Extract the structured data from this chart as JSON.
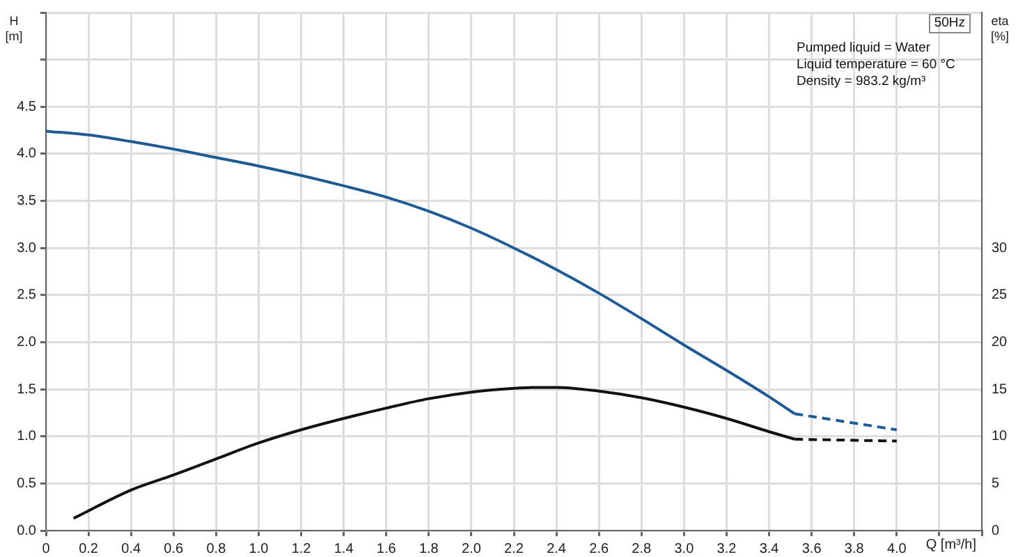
{
  "chart_data": {
    "type": "line",
    "xlabel": "Q [m³/h]",
    "ylabel": "H [m]",
    "y2label": "eta [%]",
    "annotations": [
      "50Hz",
      "Pumped liquid = Water",
      "Liquid temperature = 60 °C",
      "Density = 983.2 kg/m³"
    ],
    "xlim": [
      0,
      4.4
    ],
    "xticks": [
      0,
      0.2,
      0.4,
      0.6,
      0.8,
      {
        "value": 1,
        "label": "1.0"
      },
      1.2,
      1.4,
      1.6,
      1.8,
      {
        "value": 2,
        "label": "2.0"
      },
      2.2,
      2.4,
      2.6,
      2.8,
      {
        "value": 3,
        "label": "3.0"
      },
      3.2,
      3.4,
      3.6,
      3.8,
      {
        "value": 4,
        "label": "4.0"
      },
      {
        "value": 4.2,
        "label": null
      },
      {
        "value": 4.4,
        "label": null
      }
    ],
    "ylim": [
      0,
      5.5
    ],
    "yticks": [
      {
        "value": 0,
        "label": "0.0"
      },
      0.5,
      {
        "value": 1,
        "label": "1.0"
      },
      1.5,
      {
        "value": 2,
        "label": "2.0"
      },
      2.5,
      {
        "value": 3,
        "label": "3.0"
      },
      3.5,
      {
        "value": 4,
        "label": "4.0"
      },
      4.5,
      {
        "value": 5,
        "label": null
      },
      {
        "value": 5.5,
        "label": null
      }
    ],
    "y2lim": [
      0,
      55
    ],
    "y2ticks": [
      0,
      5,
      10,
      15,
      20,
      25,
      30
    ],
    "grid": true,
    "legend": false,
    "marker": "none",
    "series": [
      {
        "color": "#1f5a96",
        "line_style": "solid",
        "x": [
          0,
          0.2,
          0.4,
          0.6,
          0.8,
          1.0,
          1.2,
          1.4,
          1.6,
          1.8,
          2.0,
          2.2,
          2.4,
          2.6,
          2.8,
          3.0,
          3.2,
          3.4,
          3.52
        ],
        "values": [
          4.24,
          4.2,
          4.13,
          4.05,
          3.96,
          3.87,
          3.77,
          3.66,
          3.54,
          3.39,
          3.21,
          3.0,
          2.77,
          2.52,
          2.25,
          1.97,
          1.7,
          1.42,
          1.24
        ]
      },
      {
        "color": "#1f5a96",
        "line_style": "dashed",
        "x": [
          3.52,
          4.0
        ],
        "values": [
          1.24,
          1.07
        ]
      },
      {
        "color": "#111111",
        "line_style": "solid",
        "axis": "y2",
        "x": [
          0.13,
          0.4,
          0.6,
          0.8,
          1.0,
          1.2,
          1.4,
          1.6,
          1.8,
          2.0,
          2.2,
          2.3,
          2.4,
          2.6,
          2.8,
          3.0,
          3.2,
          3.4,
          3.52
        ],
        "values": [
          1.3,
          4.3,
          5.9,
          7.6,
          9.3,
          10.7,
          11.9,
          13.0,
          14.0,
          14.7,
          15.1,
          15.2,
          15.2,
          14.8,
          14.1,
          13.1,
          11.9,
          10.5,
          9.7
        ]
      },
      {
        "color": "#111111",
        "line_style": "dashed",
        "axis": "y2",
        "x": [
          3.52,
          4.0
        ],
        "values": [
          9.7,
          9.5
        ]
      }
    ]
  }
}
